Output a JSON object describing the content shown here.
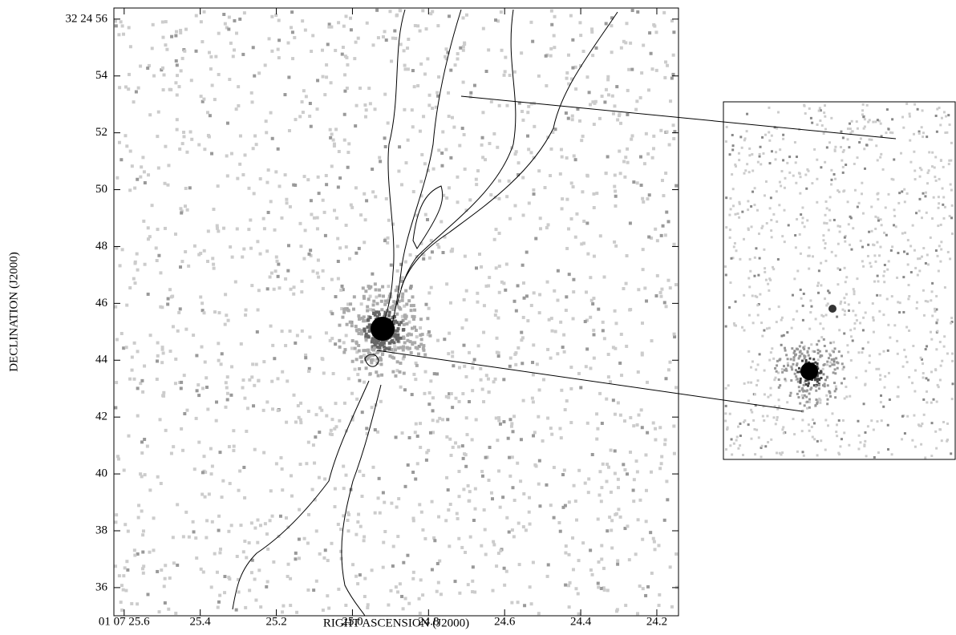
{
  "chart_data": {
    "type": "image",
    "xlabel": "RIGHT ASCENSION (J2000)",
    "ylabel": "DECLINATION (J2000)",
    "xlim": [
      25.627,
      24.143
    ],
    "ylim": [
      35.01,
      56.39
    ],
    "xticks": [
      {
        "value": 25.6,
        "label": "01 07 25.6"
      },
      25.4,
      25.2,
      {
        "value": 25.0,
        "label": "25.0"
      },
      24.8,
      24.6,
      24.4,
      24.2
    ],
    "yticks": [
      36,
      38,
      40,
      42,
      44,
      46,
      48,
      50,
      52,
      54,
      {
        "value": 56,
        "label": "32 24 56"
      }
    ]
  }
}
